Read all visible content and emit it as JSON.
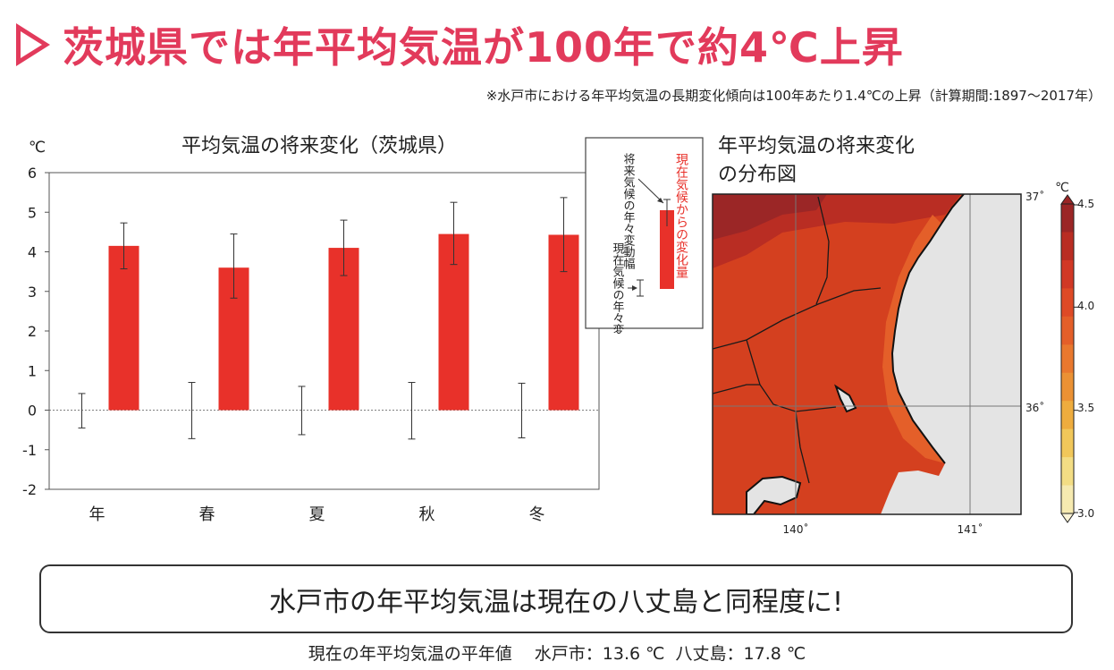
{
  "headline": {
    "text": "茨城県では年平均気温が100年で約4℃上昇",
    "color": "#e23a5b"
  },
  "note": "※水戸市における年平均気温の長期変化傾向は100年あたり1.4℃の上昇（計算期間:1897〜2017年）",
  "bar_unit": "℃",
  "legend_box": {
    "future_label": "将来気候の年々変動幅",
    "present_label": "現在気候の年々変動幅",
    "change_label": "現在気候からの変化量"
  },
  "map": {
    "title_line1": "年平均気温の将来変化",
    "title_line2": "の分布図",
    "lat_labels": [
      "37˚",
      "36˚"
    ],
    "lon_labels": [
      "140˚",
      "141˚"
    ],
    "colorbar": {
      "unit": "℃",
      "ticks": [
        "4.5",
        "4.0",
        "3.5",
        "3.0"
      ],
      "colors": [
        "#9b2626",
        "#b92d23",
        "#d13825",
        "#de4a26",
        "#e45f29",
        "#e9782e",
        "#eb9134",
        "#eeac3e",
        "#f1c75a",
        "#f3dd84",
        "#f6eab0"
      ]
    },
    "land_color": "#d4401f",
    "sea_color": "#e4e4e4"
  },
  "summary": "水戸市の年平均気温は現在の八丈島と同程度に!",
  "footer": "現在の年平均気温の平年値　 水戸市：13.6 ℃  八丈島：17.8 ℃",
  "chart_data": {
    "type": "bar",
    "title": "平均気温の将来変化（茨城県）",
    "ylabel": "℃",
    "ylim": [
      -2,
      6
    ],
    "yticks": [
      6,
      5,
      4,
      3,
      2,
      1,
      0,
      -1,
      -2
    ],
    "categories": [
      "年",
      "春",
      "夏",
      "秋",
      "冬"
    ],
    "series": [
      {
        "values": [
          4.15,
          3.6,
          4.1,
          4.45,
          4.43
        ],
        "error_low": [
          3.57,
          2.83,
          3.4,
          3.68,
          3.5
        ],
        "error_high": [
          4.73,
          4.45,
          4.8,
          5.25,
          5.37
        ],
        "color": "#e8312a"
      }
    ],
    "present_variability": {
      "low": [
        -0.45,
        -0.72,
        -0.62,
        -0.73,
        -0.7
      ],
      "high": [
        0.42,
        0.7,
        0.6,
        0.7,
        0.68
      ]
    }
  }
}
